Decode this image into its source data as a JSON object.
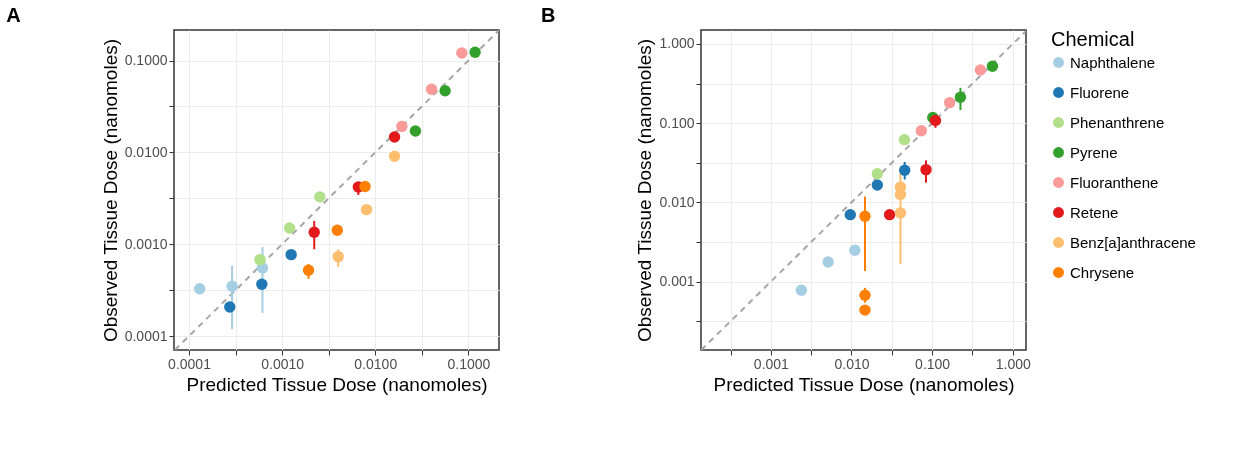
{
  "chart_data": [
    {
      "type": "scatter",
      "title": "A",
      "xlabel": "Predicted Tissue Dose (nanomoles)",
      "ylabel": "Observed Tissue Dose (nanomoles)",
      "log": "xy",
      "grid": true,
      "marker": "circle",
      "xlim": [
        6.9e-05,
        0.213
      ],
      "ylim": [
        7.05e-05,
        0.215
      ],
      "xticks": [
        {
          "value": 0.0001,
          "label": "0.0001"
        },
        {
          "value": 0.000316,
          "label": null
        },
        {
          "value": 0.001,
          "label": "0.0010"
        },
        {
          "value": 0.00316,
          "label": null
        },
        {
          "value": 0.01,
          "label": "0.0100"
        },
        {
          "value": 0.0316,
          "label": null
        },
        {
          "value": 0.1,
          "label": "0.1000"
        }
      ],
      "yticks": [
        {
          "value": 0.0001,
          "label": "0.0001"
        },
        {
          "value": 0.000316,
          "label": null
        },
        {
          "value": 0.001,
          "label": "0.0010"
        },
        {
          "value": 0.00316,
          "label": null
        },
        {
          "value": 0.01,
          "label": "0.0100"
        },
        {
          "value": 0.0316,
          "label": null
        },
        {
          "value": 0.1,
          "label": "0.1000"
        }
      ],
      "series": [
        {
          "color": "#a6cee3",
          "x": [
            0.00013,
            0.00029,
            0.000615
          ],
          "values": [
            0.000328,
            0.000348,
            0.000552
          ],
          "errors": [
            null,
            [
              0.000119,
              0.000586
            ],
            [
              0.000179,
              0.00093
            ]
          ]
        },
        {
          "color": "#1f78b4",
          "x": [
            0.000274,
            0.000605,
            0.00125
          ],
          "values": [
            0.000207,
            0.000367,
            0.00077
          ]
        },
        {
          "color": "#b2df8a",
          "x": [
            0.000578,
            0.0012,
            0.00254
          ],
          "values": [
            0.00068,
            0.0015,
            0.00328
          ]
        },
        {
          "color": "#33a02c",
          "x": [
            0.027,
            0.0562,
            0.118
          ],
          "values": [
            0.0171,
            0.0469,
            0.123
          ]
        },
        {
          "color": "#fb9a99",
          "x": [
            0.0193,
            0.0402,
            0.0849
          ],
          "values": [
            0.0192,
            0.0487,
            0.121
          ]
        },
        {
          "color": "#e31a1c",
          "x": [
            0.00221,
            0.00658,
            0.0161
          ],
          "values": [
            0.00135,
            0.0042,
            0.0147
          ],
          "errors": [
            [
              0.00088,
              0.00179
            ],
            [
              0.00343,
              0.0042
            ],
            null
          ]
        },
        {
          "color": "#fdbf6f",
          "x": [
            0.004,
            0.00805,
            0.0161
          ],
          "values": [
            0.000733,
            0.00238,
            0.00908
          ],
          "errors": [
            [
              0.000565,
              0.00088
            ],
            null,
            null
          ]
        },
        {
          "color": "#ff7f00",
          "x": [
            0.00192,
            0.00391,
            0.00776
          ],
          "values": [
            0.00052,
            0.00142,
            0.00425
          ],
          "errors": [
            [
              0.00042,
              0.000608
            ],
            null,
            null
          ]
        },
        {
          "type": "line",
          "color": "#a6a6a6",
          "line_style": "dashed",
          "marker": "none",
          "x": [
            7.05e-05,
            0.213
          ],
          "values": [
            7.05e-05,
            0.213
          ]
        }
      ]
    },
    {
      "type": "scatter",
      "title": "B",
      "xlabel": "Predicted Tissue Dose (nanomoles)",
      "ylabel": "Observed Tissue Dose (nanomoles)",
      "log": "xy",
      "grid": true,
      "legend": "right",
      "legend_title": "Chemical",
      "marker": "circle",
      "xlim": [
        0.000136,
        1.46
      ],
      "ylim": [
        0.000137,
        1.5
      ],
      "xticks": [
        {
          "value": 0.000316,
          "label": null
        },
        {
          "value": 0.001,
          "label": "0.001"
        },
        {
          "value": 0.00316,
          "label": null
        },
        {
          "value": 0.01,
          "label": "0.010"
        },
        {
          "value": 0.0316,
          "label": null
        },
        {
          "value": 0.1,
          "label": "0.100"
        },
        {
          "value": 0.316,
          "label": null
        },
        {
          "value": 1,
          "label": "1.000"
        }
      ],
      "yticks": [
        {
          "value": 0.000316,
          "label": null
        },
        {
          "value": 0.001,
          "label": "0.001"
        },
        {
          "value": 0.00316,
          "label": null
        },
        {
          "value": 0.01,
          "label": "0.010"
        },
        {
          "value": 0.0316,
          "label": null
        },
        {
          "value": 0.1,
          "label": "0.100"
        },
        {
          "value": 0.316,
          "label": null
        },
        {
          "value": 1,
          "label": "1.000"
        }
      ],
      "series": [
        {
          "name": "Naphthalene",
          "color": "#a6cee3",
          "x": [
            0.00239,
            0.00513,
            0.011
          ],
          "values": [
            0.000778,
            0.00177,
            0.00249
          ]
        },
        {
          "name": "Fluorene",
          "color": "#1f78b4",
          "x": [
            0.00966,
            0.0209,
            0.0457
          ],
          "values": [
            0.007,
            0.0166,
            0.0255
          ],
          "errors": [
            null,
            null,
            [
              0.0194,
              0.0324
            ]
          ]
        },
        {
          "name": "Phenanthrene",
          "color": "#b2df8a",
          "x": [
            0.0209,
            0.0453
          ],
          "values": [
            0.023,
            0.0619
          ]
        },
        {
          "name": "Pyrene",
          "color": "#33a02c",
          "x": [
            0.102,
            0.2245,
            0.56
          ],
          "values": [
            0.118,
            0.212,
            0.524
          ],
          "errors": [
            null,
            [
              0.1465,
              0.279
            ],
            null
          ]
        },
        {
          "name": "Fluoranthene",
          "color": "#fb9a99",
          "x": [
            0.0734,
            0.165,
            0.397
          ],
          "values": [
            0.0801,
            0.1817,
            0.469
          ]
        },
        {
          "name": "Retene",
          "color": "#e31a1c",
          "x": [
            0.0297,
            0.084,
            0.11
          ],
          "values": [
            0.007,
            0.0259,
            0.1083
          ],
          "errors": [
            null,
            [
              0.01775,
              0.0339
            ],
            [
              0.0873,
              0.123
            ]
          ]
        },
        {
          "name": "Benz[a]anthracene",
          "color": "#fdbf6f",
          "x": [
            0.0405,
            0.0405,
            0.0405
          ],
          "values": [
            0.0156,
            0.01258,
            0.00737
          ],
          "errors": [
            null,
            null,
            [
              0.00166,
              0.0273
            ]
          ]
        },
        {
          "name": "Chrysene",
          "color": "#ff7f00",
          "x": [
            0.0147,
            0.0147,
            0.0147
          ],
          "values": [
            0.0067,
            0.000672,
            0.000437
          ],
          "errors": [
            [
              0.00136,
              0.01184
            ],
            [
              0.000542,
              0.000834
            ],
            null
          ]
        },
        {
          "type": "line",
          "color": "#a6a6a6",
          "line_style": "dashed",
          "marker": "none",
          "x": [
            0.000137,
            1.46
          ],
          "values": [
            0.000137,
            1.46
          ]
        }
      ]
    }
  ]
}
